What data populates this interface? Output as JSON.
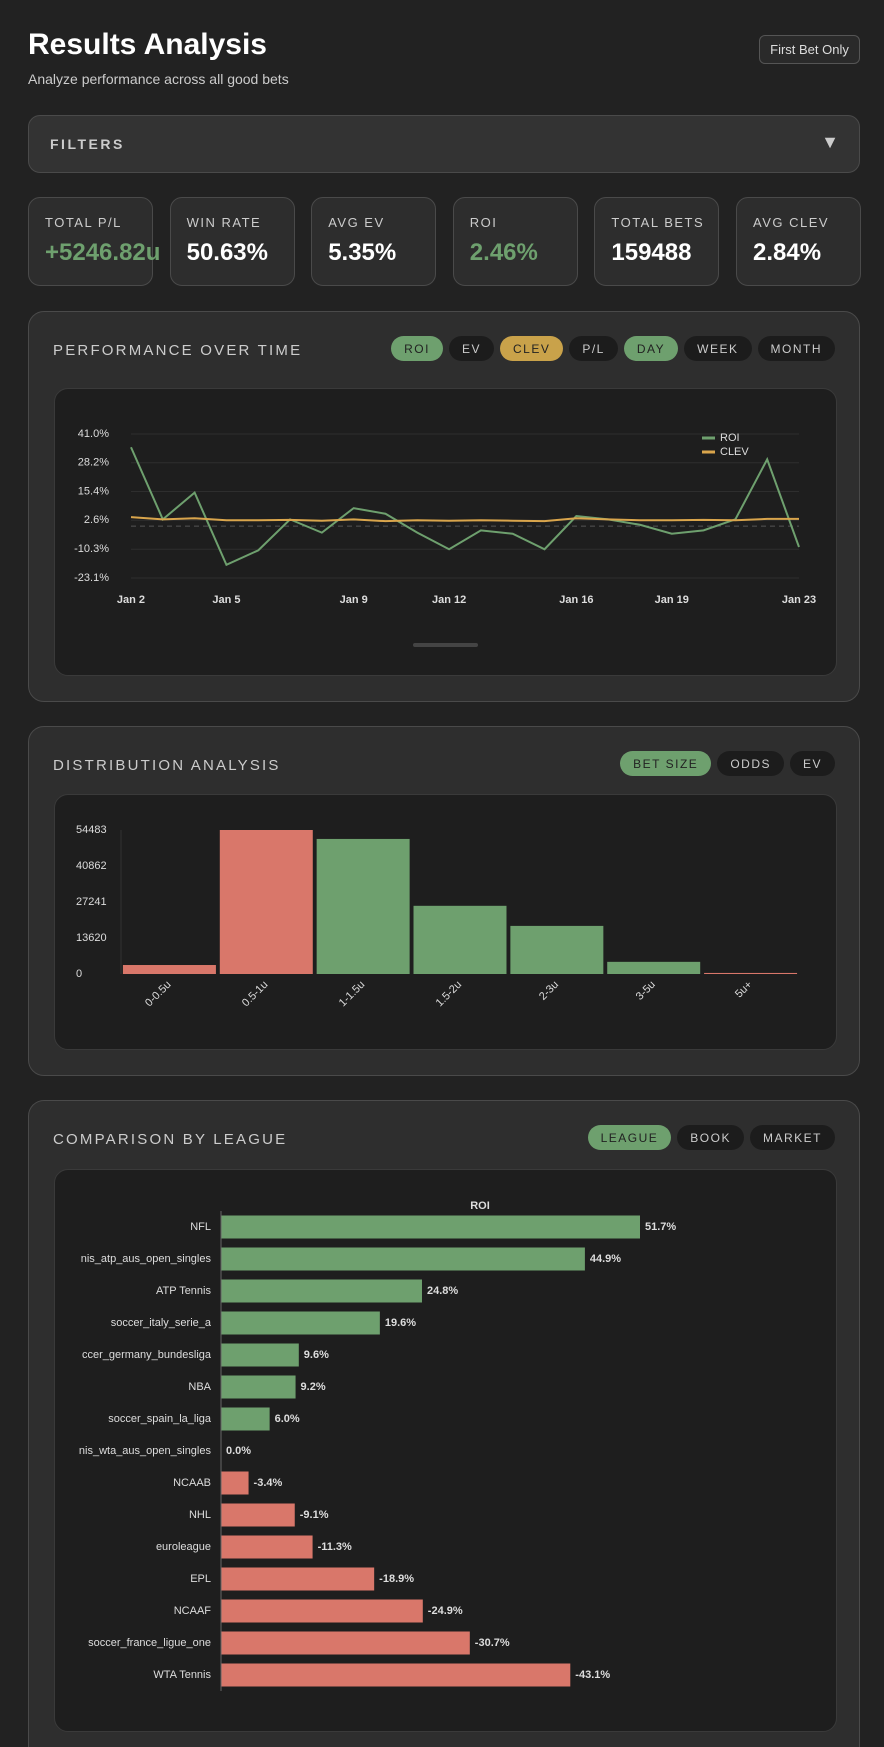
{
  "header": {
    "title": "Results Analysis",
    "subtitle": "Analyze performance across all good bets",
    "button": "First Bet Only"
  },
  "filters": {
    "label": "FILTERS"
  },
  "stats": [
    {
      "label": "TOTAL P/L",
      "value": "+5246.82u",
      "color": "#6ea06e"
    },
    {
      "label": "WIN RATE",
      "value": "50.63%",
      "color": "#ffffff"
    },
    {
      "label": "AVG EV",
      "value": "5.35%",
      "color": "#ffffff"
    },
    {
      "label": "ROI",
      "value": "2.46%",
      "color": "#6ea06e"
    },
    {
      "label": "TOTAL BETS",
      "value": "159488",
      "color": "#ffffff"
    },
    {
      "label": "AVG CLEV",
      "value": "2.84%",
      "color": "#ffffff"
    }
  ],
  "panels": [
    {
      "title": "PERFORMANCE OVER TIME",
      "buttons": [
        {
          "label": "ROI",
          "active": true,
          "color": "#6ea06e"
        },
        {
          "label": "EV",
          "active": false
        },
        {
          "label": "CLEV",
          "active": true,
          "color": "#c9a24a"
        },
        {
          "label": "P/L",
          "active": false
        },
        {
          "label": "DAY",
          "active": true,
          "color": "#6ea06e"
        },
        {
          "label": "WEEK",
          "active": false
        },
        {
          "label": "MONTH",
          "active": false
        }
      ]
    },
    {
      "title": "DISTRIBUTION ANALYSIS",
      "buttons": [
        {
          "label": "BET SIZE",
          "active": true,
          "color": "#6ea06e"
        },
        {
          "label": "ODDS",
          "active": false
        },
        {
          "label": "EV",
          "active": false
        }
      ]
    },
    {
      "title": "COMPARISON BY LEAGUE",
      "buttons": [
        {
          "label": "LEAGUE",
          "active": true,
          "color": "#6ea06e"
        },
        {
          "label": "BOOK",
          "active": false
        },
        {
          "label": "MARKET",
          "active": false
        }
      ]
    }
  ],
  "chart_data": [
    {
      "type": "line",
      "categories": [
        "Jan 2",
        null,
        null,
        "Jan 5",
        null,
        null,
        null,
        "Jan 9",
        null,
        null,
        "Jan 12",
        null,
        null,
        null,
        "Jan 16",
        null,
        null,
        "Jan 19",
        null,
        null,
        null,
        "Jan 23"
      ],
      "series": [
        {
          "name": "ROI",
          "color": "#6ea06e",
          "values": [
            35.1,
            3.0,
            14.9,
            -17.2,
            -10.8,
            3.0,
            -2.9,
            8.0,
            5.5,
            -2.9,
            -10.3,
            -1.9,
            -3.4,
            -10.3,
            4.5,
            3.0,
            0.6,
            -3.4,
            -1.9,
            3.0,
            29.7,
            -9.3
          ]
        },
        {
          "name": "CLEV",
          "color": "#d9a54c",
          "values": [
            4.0,
            3.0,
            3.5,
            2.6,
            2.6,
            2.8,
            2.4,
            3.0,
            2.2,
            2.6,
            2.4,
            2.6,
            2.4,
            2.2,
            3.5,
            3.0,
            2.6,
            2.6,
            2.8,
            2.6,
            3.2,
            3.2
          ]
        }
      ],
      "ylim": [
        -23.1,
        41.0
      ],
      "yticks": [
        {
          "value": 41.0,
          "label": "41.0%"
        },
        {
          "value": 28.2,
          "label": "28.2%"
        },
        {
          "value": 15.4,
          "label": "15.4%"
        },
        {
          "value": 2.6,
          "label": "2.6%"
        },
        {
          "value": -10.3,
          "label": "-10.3%"
        },
        {
          "value": -23.1,
          "label": "-23.1%"
        }
      ],
      "grid": true,
      "legend": "top-right"
    },
    {
      "type": "bar",
      "categories": [
        "0-0.5u",
        "0.5-1u",
        "1-1.5u",
        "1.5-2u",
        "2-3u",
        "3-5u",
        "5u+"
      ],
      "values": [
        3400,
        54483,
        51100,
        25800,
        18200,
        4600,
        400
      ],
      "colors": [
        "#d9776a",
        "#d9776a",
        "#6ea06e",
        "#6ea06e",
        "#6ea06e",
        "#6ea06e",
        "#d9776a"
      ],
      "ylim": [
        0,
        54483
      ],
      "yticks": [
        0,
        13620,
        27241,
        40862,
        54483
      ],
      "grid": false
    },
    {
      "type": "hbar",
      "title": "ROI",
      "categories": [
        "NFL",
        "nis_atp_aus_open_singles",
        "ATP Tennis",
        "soccer_italy_serie_a",
        "ccer_germany_bundesliga",
        "NBA",
        "soccer_spain_la_liga",
        "nis_wta_aus_open_singles",
        "NCAAB",
        "NHL",
        "euroleague",
        "EPL",
        "NCAAF",
        "soccer_france_ligue_one",
        "WTA Tennis"
      ],
      "values": [
        51.7,
        44.9,
        24.8,
        19.6,
        9.6,
        9.2,
        6.0,
        0.0,
        -3.4,
        -9.1,
        -11.3,
        -18.9,
        -24.9,
        -30.7,
        -43.1
      ],
      "value_labels": [
        "51.7%",
        "44.9%",
        "24.8%",
        "19.6%",
        "9.6%",
        "9.2%",
        "6.0%",
        "0.0%",
        "-3.4%",
        "-9.1%",
        "-11.3%",
        "-18.9%",
        "-24.9%",
        "-30.7%",
        "-43.1%"
      ],
      "colors": [
        "#6ea06e",
        "#6ea06e",
        "#6ea06e",
        "#6ea06e",
        "#6ea06e",
        "#6ea06e",
        "#6ea06e",
        "#6ea06e",
        "#d9776a",
        "#d9776a",
        "#d9776a",
        "#d9776a",
        "#d9776a",
        "#d9776a",
        "#d9776a"
      ]
    }
  ]
}
